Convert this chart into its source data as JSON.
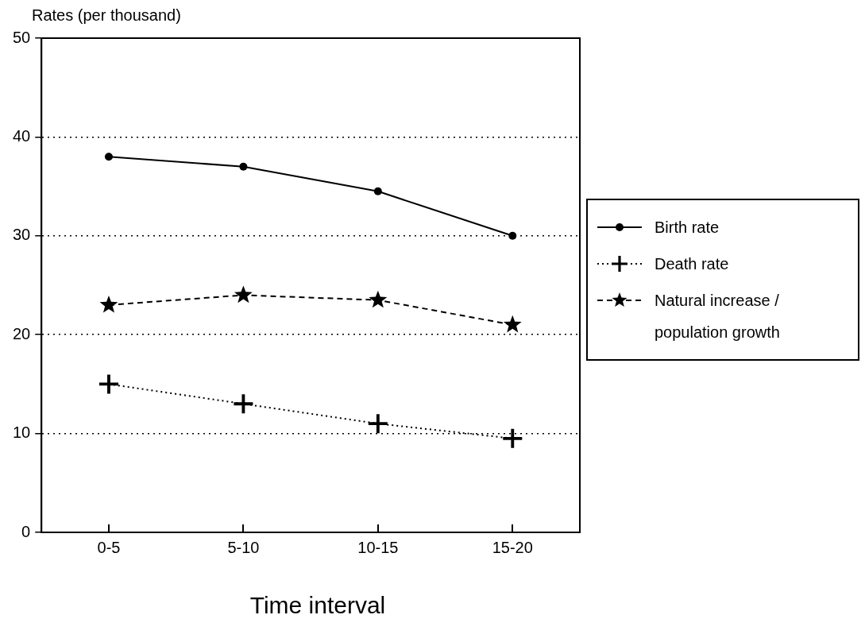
{
  "chart_data": {
    "type": "line",
    "ylabel": "Rates (per thousand)",
    "xlabel": "Time interval",
    "categories": [
      "0-5",
      "5-10",
      "10-15",
      "15-20"
    ],
    "series": [
      {
        "name": "Birth rate",
        "color": "#000000",
        "values": [
          38,
          37,
          34.5,
          30
        ],
        "marker": "circle",
        "line_style": "solid"
      },
      {
        "name": "Death rate",
        "color": "#000000",
        "values": [
          15,
          13,
          11,
          9.5
        ],
        "marker": "cross",
        "line_style": "dotted"
      },
      {
        "name": "Natural increase / population growth",
        "color": "#000000",
        "values": [
          23,
          24,
          23.5,
          21
        ],
        "marker": "star",
        "line_style": "dashed"
      }
    ],
    "ylim": [
      0,
      50
    ],
    "yticks": [
      0,
      10,
      20,
      30,
      40,
      50
    ],
    "grid": "y",
    "legend": "right"
  }
}
